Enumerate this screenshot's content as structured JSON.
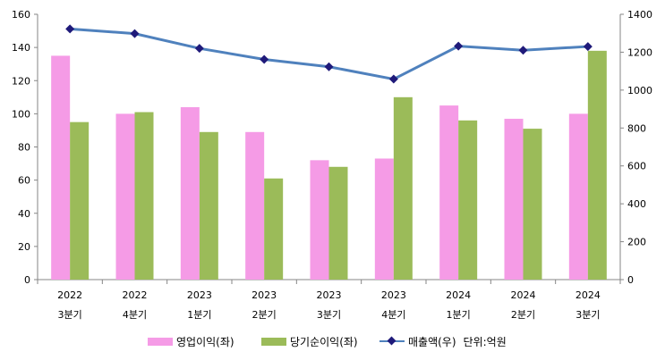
{
  "chart_data": {
    "type": "bar",
    "categories": [
      [
        "2022",
        "3분기"
      ],
      [
        "2022",
        "4분기"
      ],
      [
        "2023",
        "1분기"
      ],
      [
        "2023",
        "2분기"
      ],
      [
        "2023",
        "3분기"
      ],
      [
        "2023",
        "4분기"
      ],
      [
        "2024",
        "1분기"
      ],
      [
        "2024",
        "2분기"
      ],
      [
        "2024",
        "3분기"
      ]
    ],
    "series": [
      {
        "name": "영업이익(좌)",
        "kind": "bar",
        "axis": "left",
        "color": "#f59be6",
        "values": [
          135,
          100,
          104,
          89,
          72,
          73,
          105,
          97,
          100
        ]
      },
      {
        "name": "당기순이익(좌)",
        "kind": "bar",
        "axis": "left",
        "color": "#9bbb59",
        "values": [
          95,
          101,
          89,
          61,
          68,
          110,
          96,
          91,
          138
        ]
      },
      {
        "name": "매출액(우)",
        "kind": "line",
        "axis": "right",
        "color": "#4f81bd",
        "marker_color": "#1f1a7a",
        "values": [
          1323,
          1298,
          1220,
          1162,
          1123,
          1058,
          1232,
          1210,
          1230
        ]
      }
    ],
    "y_left": {
      "min": 0,
      "max": 160,
      "step": 20,
      "ticks": [
        "0",
        "20",
        "40",
        "60",
        "80",
        "100",
        "120",
        "140",
        "160"
      ]
    },
    "y_right": {
      "min": 0,
      "max": 1400,
      "step": 200,
      "ticks": [
        "0",
        "200",
        "400",
        "600",
        "800",
        "1000",
        "1200",
        "1400"
      ]
    },
    "grid": false,
    "legend_position": "bottom",
    "unit_note": "단위:억원"
  }
}
